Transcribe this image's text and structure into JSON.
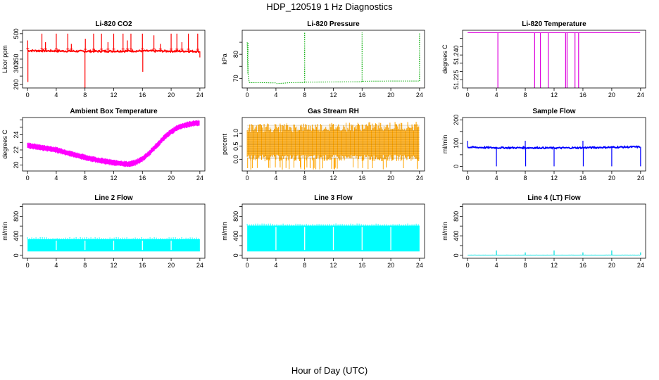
{
  "figure": {
    "title": "HDP_120519  1 Hz Diagnostics",
    "xlabel": "Hour of Day (UTC)"
  },
  "chart_data": [
    {
      "type": "line",
      "key": "co2",
      "title": "Li-820 CO2",
      "ylabel": "Licor ppm",
      "color": "#ff0000",
      "xlim": [
        -0.7,
        24.7
      ],
      "ylim": [
        180,
        520
      ],
      "xticks": [
        0,
        4,
        8,
        12,
        16,
        20,
        24
      ],
      "yticks": [
        200,
        250,
        300,
        350,
        400,
        450,
        500
      ],
      "ytick_labels": [
        "200",
        "",
        "300",
        "350",
        "",
        "",
        "500"
      ],
      "series": [
        {
          "name": "co2",
          "base": 397,
          "noise": 5,
          "x": [
            0,
            4,
            8,
            8.02,
            12,
            16,
            16.05,
            20,
            24
          ],
          "y": [
            400,
            398,
            396,
            396,
            397,
            398,
            398,
            397,
            396
          ],
          "spikes": [
            [
              0.02,
              460
            ],
            [
              0.05,
              215
            ],
            [
              2,
              500
            ],
            [
              2.5,
              450
            ],
            [
              4,
              500
            ],
            [
              5.6,
              500
            ],
            [
              6.1,
              440
            ],
            [
              8,
              180
            ],
            [
              8.05,
              470
            ],
            [
              9.2,
              500
            ],
            [
              10.3,
              500
            ],
            [
              11.2,
              450
            ],
            [
              12,
              500
            ],
            [
              13.3,
              500
            ],
            [
              13.9,
              460
            ],
            [
              14.4,
              500
            ],
            [
              16,
              500
            ],
            [
              16.05,
              275
            ],
            [
              17.6,
              490
            ],
            [
              18.5,
              440
            ],
            [
              20,
              500
            ],
            [
              20.8,
              500
            ],
            [
              21.5,
              450
            ],
            [
              22.4,
              500
            ],
            [
              23.7,
              500
            ],
            [
              24,
              360
            ]
          ]
        }
      ]
    },
    {
      "type": "line",
      "key": "pressure",
      "title": "Li-820 Pressure",
      "ylabel": "kPa",
      "color": "#00aa00",
      "xlim": [
        -0.7,
        24.7
      ],
      "ylim": [
        66,
        90
      ],
      "xticks": [
        0,
        4,
        8,
        12,
        16,
        20,
        24
      ],
      "yticks": [
        70,
        75,
        80,
        85
      ],
      "ytick_labels": [
        "70",
        "",
        "80",
        ""
      ],
      "series": [
        {
          "name": "pressure",
          "dotted": true,
          "x": [
            0,
            0.1,
            0.3,
            2,
            4,
            4.05,
            6,
            8,
            8.05,
            12,
            16,
            16.05,
            20,
            24
          ],
          "y": [
            85,
            72,
            68.2,
            68.2,
            68.1,
            67.8,
            68.2,
            68.3,
            68.4,
            68.5,
            68.6,
            68.8,
            68.9,
            68.9
          ],
          "spikes": [
            [
              0.1,
              85
            ],
            [
              8,
              89
            ],
            [
              16,
              89
            ],
            [
              24,
              89
            ]
          ]
        }
      ]
    },
    {
      "type": "line",
      "key": "temperature",
      "title": "Li-820 Temperature",
      "ylabel": "degrees C",
      "color": "#dd00dd",
      "xlim": [
        -0.7,
        24.7
      ],
      "ylim": [
        51.22,
        51.255
      ],
      "xticks": [
        0,
        4,
        8,
        12,
        16,
        20,
        24
      ],
      "yticks": [
        51.225,
        51.23,
        51.235,
        51.24,
        51.245,
        51.25
      ],
      "ytick_labels": [
        "51.225",
        "",
        "",
        "51.240",
        "",
        ""
      ],
      "series": [
        {
          "name": "temperature",
          "base": 51.2535,
          "noise": 0,
          "x": [
            0,
            24
          ],
          "y": [
            51.2535,
            51.2535
          ],
          "spikes": [
            [
              4.2,
              51.22
            ],
            [
              9.3,
              51.22
            ],
            [
              10.1,
              51.22
            ],
            [
              11.2,
              51.22
            ],
            [
              13.6,
              51.22
            ],
            [
              13.8,
              51.22
            ],
            [
              14.9,
              51.22
            ],
            [
              15.4,
              51.22
            ]
          ]
        }
      ]
    },
    {
      "type": "area",
      "key": "ambient",
      "title": "Ambient Box Temperature",
      "ylabel": "degrees C",
      "color": "#ff00ff",
      "xlim": [
        -0.7,
        24.7
      ],
      "ylim": [
        19.2,
        26.3
      ],
      "xticks": [
        0,
        4,
        8,
        12,
        16,
        20,
        24
      ],
      "yticks": [
        20,
        21,
        22,
        23,
        24,
        25,
        26
      ],
      "ytick_labels": [
        "20",
        "",
        "22",
        "",
        "24",
        "",
        ""
      ],
      "series": [
        {
          "name": "ambient",
          "band": 0.55,
          "x": [
            0,
            2,
            4,
            6,
            8,
            10,
            12,
            14,
            15,
            16,
            17,
            18,
            19,
            20,
            21,
            22,
            23,
            24
          ],
          "y": [
            22.6,
            22.3,
            22.0,
            21.5,
            21.0,
            20.6,
            20.3,
            20.1,
            20.3,
            20.8,
            21.6,
            22.6,
            23.6,
            24.4,
            25.0,
            25.3,
            25.5,
            25.6
          ]
        }
      ]
    },
    {
      "type": "area",
      "key": "rh",
      "title": "Gas Stream RH",
      "ylabel": "percent",
      "color": "#ffa500",
      "xlim": [
        -0.7,
        24.7
      ],
      "ylim": [
        -0.45,
        1.6
      ],
      "xticks": [
        0,
        4,
        8,
        12,
        16,
        20,
        24
      ],
      "yticks": [
        0,
        0.5,
        1.0
      ],
      "ytick_labels": [
        "0.0",
        "0.5",
        "1.0"
      ],
      "series": [
        {
          "name": "rh",
          "hatched": true,
          "x": [
            0,
            4,
            8,
            12,
            16,
            20,
            24
          ],
          "y": [
            0.6,
            0.6,
            0.6,
            0.6,
            0.6,
            0.65,
            0.7
          ],
          "lo": [
            0.05,
            0.05,
            0.05,
            0.05,
            0.05,
            0.05,
            0.1
          ],
          "hi": [
            1.2,
            1.15,
            1.2,
            1.15,
            1.25,
            1.3,
            1.3
          ]
        }
      ]
    },
    {
      "type": "line",
      "key": "sample",
      "title": "Sample Flow",
      "ylabel": "ml/min",
      "color": "#0000ff",
      "xlim": [
        -0.7,
        24.7
      ],
      "ylim": [
        -20,
        210
      ],
      "xticks": [
        0,
        4,
        8,
        12,
        16,
        20,
        24
      ],
      "yticks": [
        0,
        50,
        100,
        150,
        200
      ],
      "ytick_labels": [
        "0",
        "",
        "100",
        "",
        "200"
      ],
      "series": [
        {
          "name": "sample",
          "base": 80,
          "noise": 3,
          "x": [
            0,
            4,
            8,
            12,
            16,
            20,
            24
          ],
          "y": [
            82,
            80,
            80,
            79,
            80,
            82,
            84
          ],
          "spikes": [
            [
              0,
              110
            ],
            [
              4,
              0
            ],
            [
              8,
              110
            ],
            [
              8.05,
              0
            ],
            [
              12,
              0
            ],
            [
              16,
              110
            ],
            [
              16.05,
              0
            ],
            [
              20,
              0
            ],
            [
              24,
              0
            ]
          ]
        }
      ]
    },
    {
      "type": "area",
      "key": "line2",
      "title": "Line 2 Flow",
      "ylabel": "ml/min",
      "color": "#00ffff",
      "xlim": [
        -0.7,
        24.7
      ],
      "ylim": [
        -60,
        1050
      ],
      "xticks": [
        0,
        4,
        8,
        12,
        16,
        20,
        24
      ],
      "yticks": [
        0,
        200,
        400,
        600,
        800,
        1000
      ],
      "ytick_labels": [
        "0",
        "",
        "400",
        "",
        "800",
        ""
      ],
      "series": [
        {
          "name": "line2",
          "gaps": [
            4,
            8,
            12,
            16,
            20
          ],
          "x": [
            0,
            24
          ],
          "lo": [
            80,
            80
          ],
          "hi": [
            330,
            330
          ],
          "y": [
            200,
            200
          ]
        }
      ]
    },
    {
      "type": "area",
      "key": "line3",
      "title": "Line 3 Flow",
      "ylabel": "ml/min",
      "color": "#00ffff",
      "xlim": [
        -0.7,
        24.7
      ],
      "ylim": [
        -60,
        1050
      ],
      "xticks": [
        0,
        4,
        8,
        12,
        16,
        20,
        24
      ],
      "yticks": [
        0,
        200,
        400,
        600,
        800,
        1000
      ],
      "ytick_labels": [
        "0",
        "",
        "400",
        "",
        "800",
        ""
      ],
      "series": [
        {
          "name": "line3",
          "gaps": [
            4,
            8,
            12,
            16,
            20
          ],
          "x": [
            0,
            24
          ],
          "lo": [
            80,
            80
          ],
          "hi": [
            610,
            610
          ],
          "y": [
            350,
            350
          ]
        }
      ]
    },
    {
      "type": "line",
      "key": "line4",
      "title": "Line 4 (LT) Flow",
      "ylabel": "ml/min",
      "color": "#00dddd",
      "xlim": [
        -0.7,
        24.7
      ],
      "ylim": [
        -60,
        1050
      ],
      "xticks": [
        0,
        4,
        8,
        12,
        16,
        20,
        24
      ],
      "yticks": [
        0,
        200,
        400,
        600,
        800,
        1000
      ],
      "ytick_labels": [
        "0",
        "",
        "400",
        "",
        "800",
        ""
      ],
      "series": [
        {
          "name": "line4",
          "base": 5,
          "noise": 1,
          "x": [
            0,
            24
          ],
          "y": [
            5,
            5
          ],
          "spikes": [
            [
              4,
              100
            ],
            [
              8,
              60
            ],
            [
              12,
              100
            ],
            [
              16,
              60
            ],
            [
              20,
              100
            ],
            [
              24,
              60
            ]
          ]
        }
      ]
    }
  ]
}
